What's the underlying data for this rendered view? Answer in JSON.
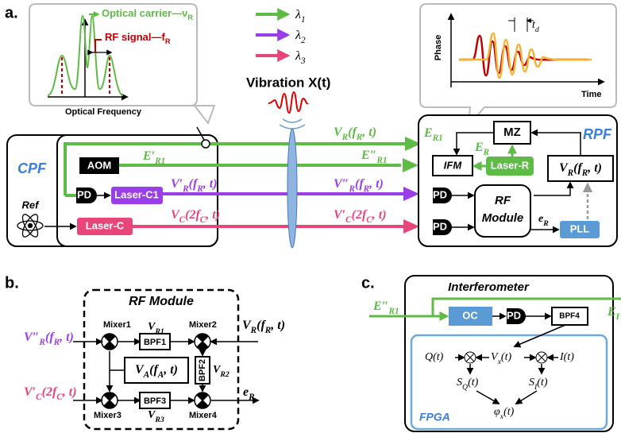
{
  "panel_labels": [
    "a.",
    "b.",
    "c."
  ],
  "spectrum": {
    "carrier": [
      "Optical carrier—ν",
      "R"
    ],
    "rf": [
      "RF signal—f",
      "R"
    ],
    "axis": "Optical Frequency"
  },
  "wavelengths": [
    [
      "λ",
      "1"
    ],
    [
      "λ",
      "2"
    ],
    [
      "λ",
      "3"
    ]
  ],
  "vibration": "Vibration X(t)",
  "phase_plot": {
    "y_label": "Phase",
    "x_label": "Time",
    "delay": [
      "t",
      "d"
    ]
  },
  "cpf": {
    "title": "CPF",
    "ref": "Ref",
    "aom": "AOM",
    "pd": "PD",
    "laser_c1": "Laser-C1",
    "laser_c": "Laser-C",
    "e_r1": [
      "E′",
      "R1"
    ]
  },
  "links": {
    "v_r": [
      "V",
      "R",
      "(f",
      "R",
      ", t)"
    ],
    "e_r1": [
      "E″",
      "R1"
    ],
    "v_r1p": [
      "V′",
      "R",
      "(f",
      "R",
      ", t)"
    ],
    "v_r2p": [
      "V″",
      "R",
      "(f",
      "R",
      ", t)"
    ],
    "v_c": [
      "V",
      "C",
      "(2f",
      "C",
      ", t)"
    ],
    "v_cp": [
      "V′",
      "C",
      "(2f",
      "C",
      ", t)"
    ]
  },
  "rpf": {
    "title": "RPF",
    "mz": "MZ",
    "e_r1": [
      "E",
      "R1"
    ],
    "e_r": [
      "E",
      "R"
    ],
    "ifm": "IFM",
    "laser_r": "Laser-R",
    "v_r": [
      "V",
      "R",
      "(f",
      "R",
      ", t)"
    ],
    "pd1": "PD",
    "pd2": "PD",
    "rf_module": [
      "RF",
      "Module"
    ],
    "e_out": [
      "e",
      "R"
    ],
    "pll": "PLL"
  },
  "rf_module": {
    "title": "RF Module",
    "mixers": [
      "Mixer1",
      "Mixer2",
      "Mixer3",
      "Mixer4"
    ],
    "bpfs": [
      "BPF1",
      "BPF2",
      "BPF3"
    ],
    "v_r1": [
      "V",
      "R1"
    ],
    "v_r2": [
      "V",
      "R2"
    ],
    "v_r3": [
      "V",
      "R3"
    ],
    "v_a": [
      "V",
      "A",
      "(f",
      "A",
      ", t)"
    ],
    "in_r2p": [
      "V″",
      "R",
      "(f",
      "R",
      ", t)"
    ],
    "in_cp": [
      "V′",
      "C",
      "(2f",
      "C",
      ", t)"
    ],
    "in_r": [
      "V",
      "R",
      "(f",
      "R",
      ", t)"
    ],
    "out": [
      "e",
      "R"
    ]
  },
  "interferometer": {
    "title": "Interferometer",
    "input": [
      "E″",
      "R1"
    ],
    "out_cut": [
      "E",
      "I"
    ],
    "oc": "OC",
    "pd": "PD",
    "bpf": "BPF4",
    "fpga": "FPGA",
    "q": "Q(t)",
    "vx": [
      "V",
      "x",
      "(t)"
    ],
    "i": "I(t)",
    "sq": [
      "S",
      "Q",
      "(t)"
    ],
    "si": [
      "S",
      "I",
      "(t)"
    ],
    "phi": [
      "φ",
      "x",
      "(t)"
    ]
  }
}
